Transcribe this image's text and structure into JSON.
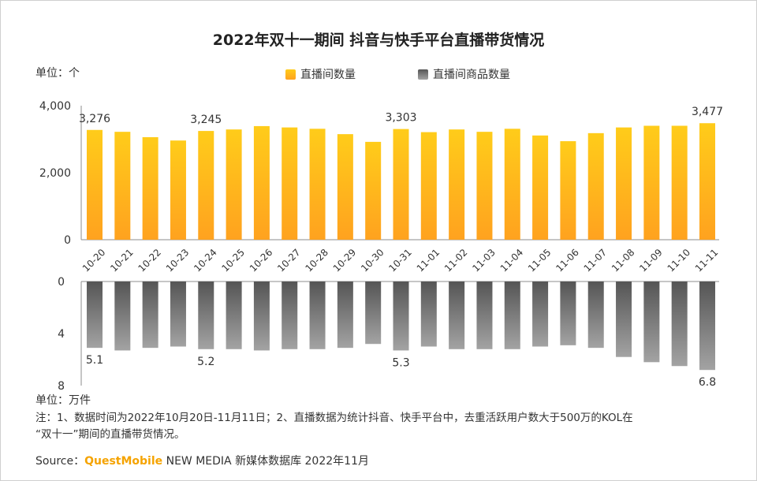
{
  "title": "2022年双十一期间 抖音与快手平台直播带货情况",
  "unit_top": "单位：个",
  "unit_bottom": "单位：万件",
  "legend": {
    "series1": "直播间数量",
    "series2": "直播间商品数量"
  },
  "note": {
    "line1": "注：1、数据时间为2022年10月20日-11月11日；2、直播数据为统计抖音、快手平台中，去重活跃用户数大于500万的KOL在",
    "line2": "“双十一”期间的直播带货情况。"
  },
  "source": {
    "label": "Source：",
    "brand": "QuestMobile",
    "rest": " NEW MEDIA 新媒体数据库 2022年11月"
  },
  "colors": {
    "gold_top": "#ffcc1a",
    "gold_bottom": "#ffa21f",
    "gray_top": "#555555",
    "gray_bottom": "#a3a3a3",
    "brand": "#f5a300"
  },
  "chart_data": {
    "type": "bar",
    "categories": [
      "10-20",
      "10-21",
      "10-22",
      "10-23",
      "10-24",
      "10-25",
      "10-26",
      "10-27",
      "10-28",
      "10-29",
      "10-30",
      "10-31",
      "11-01",
      "11-02",
      "11-03",
      "11-04",
      "11-05",
      "11-06",
      "11-07",
      "11-08",
      "11-09",
      "11-10",
      "11-11"
    ],
    "series": [
      {
        "name": "直播间数量",
        "values": [
          3276,
          3220,
          3060,
          2960,
          3245,
          3290,
          3390,
          3350,
          3310,
          3150,
          2920,
          3303,
          3210,
          3290,
          3220,
          3310,
          3110,
          2940,
          3180,
          3350,
          3400,
          3400,
          3477
        ],
        "ylim": [
          0,
          4000
        ],
        "yticks": [
          "0",
          "2,000",
          "4,000"
        ],
        "data_labels": [
          {
            "index": 0,
            "text": "3,276"
          },
          {
            "index": 4,
            "text": "3,245"
          },
          {
            "index": 11,
            "text": "3,303"
          },
          {
            "index": 22,
            "text": "3,477"
          }
        ]
      },
      {
        "name": "直播间商品数量",
        "values": [
          5.1,
          5.3,
          5.1,
          5.0,
          5.2,
          5.2,
          5.3,
          5.2,
          5.2,
          5.1,
          4.8,
          5.3,
          5.0,
          5.2,
          5.2,
          5.2,
          5.0,
          4.9,
          5.1,
          5.8,
          6.2,
          6.5,
          6.8
        ],
        "ylim": [
          0,
          8
        ],
        "yticks": [
          "0",
          "4",
          "8"
        ],
        "data_labels": [
          {
            "index": 0,
            "text": "5.1"
          },
          {
            "index": 4,
            "text": "5.2"
          },
          {
            "index": 11,
            "text": "5.3"
          },
          {
            "index": 22,
            "text": "6.8"
          }
        ]
      }
    ],
    "legend_position": "top-center",
    "grid": false
  }
}
